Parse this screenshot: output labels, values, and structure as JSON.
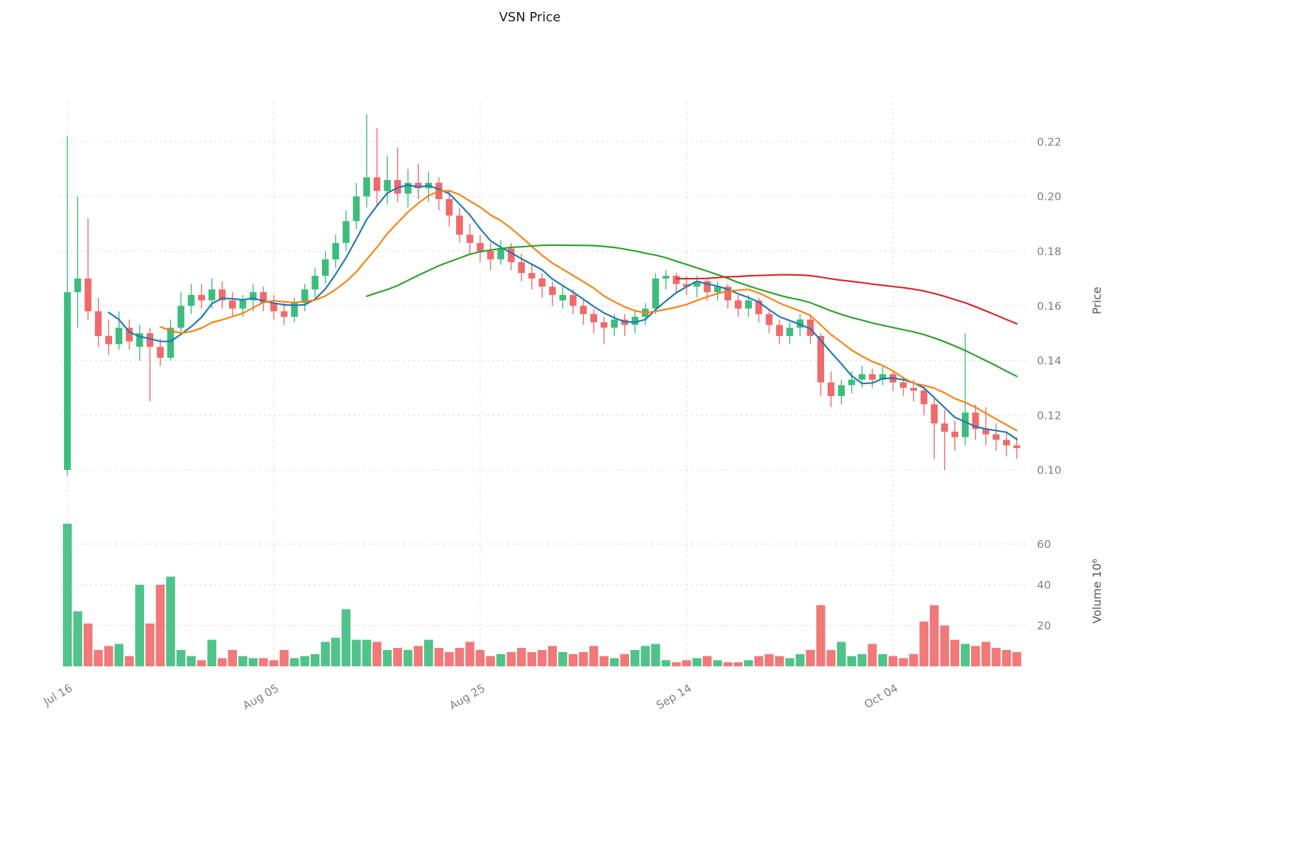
{
  "title": "VSN Price",
  "chart_data": {
    "type": "candlestick",
    "title": "VSN Price",
    "grid": true,
    "price_axis": {
      "label": "Price",
      "ticks": [
        "0.10",
        "0.12",
        "0.14",
        "0.16",
        "0.18",
        "0.20",
        "0.22"
      ],
      "ylim": [
        0.09,
        0.235
      ]
    },
    "volume_axis": {
      "label": "Volume  10⁶",
      "ticks": [
        "20",
        "40",
        "60"
      ]
    },
    "x_ticks": [
      {
        "i": 0,
        "label": "Jul 16"
      },
      {
        "i": 20,
        "label": "Aug 05"
      },
      {
        "i": 40,
        "label": "Aug 25"
      },
      {
        "i": 60,
        "label": "Sep 14"
      },
      {
        "i": 80,
        "label": "Oct 04"
      }
    ],
    "colors": {
      "up": "#3dbd7d",
      "down": "#ef6a6a",
      "grid": "#d9d9d9",
      "tick_text": "#808080",
      "axis_text": "#555555",
      "title_text": "#1a1a1a"
    },
    "moving_averages": [
      {
        "name": "sma-5",
        "window": 5,
        "color": "#1f77b4"
      },
      {
        "name": "sma-10",
        "window": 10,
        "color": "#ff7f0e"
      },
      {
        "name": "sma-30",
        "window": 30,
        "color": "#2ca02c"
      },
      {
        "name": "sma-60",
        "window": 60,
        "color": "#d62728"
      }
    ],
    "candles": [
      [
        0.1,
        0.222,
        0.098,
        0.165
      ],
      [
        0.165,
        0.2,
        0.152,
        0.17
      ],
      [
        0.17,
        0.192,
        0.155,
        0.158
      ],
      [
        0.158,
        0.163,
        0.145,
        0.149
      ],
      [
        0.149,
        0.155,
        0.142,
        0.146
      ],
      [
        0.146,
        0.158,
        0.144,
        0.152
      ],
      [
        0.152,
        0.155,
        0.144,
        0.147
      ],
      [
        0.145,
        0.153,
        0.14,
        0.15
      ],
      [
        0.15,
        0.152,
        0.125,
        0.145
      ],
      [
        0.145,
        0.148,
        0.138,
        0.141
      ],
      [
        0.141,
        0.155,
        0.14,
        0.152
      ],
      [
        0.152,
        0.165,
        0.15,
        0.16
      ],
      [
        0.16,
        0.168,
        0.157,
        0.164
      ],
      [
        0.164,
        0.168,
        0.159,
        0.162
      ],
      [
        0.162,
        0.17,
        0.159,
        0.166
      ],
      [
        0.166,
        0.169,
        0.159,
        0.162
      ],
      [
        0.162,
        0.165,
        0.156,
        0.159
      ],
      [
        0.159,
        0.164,
        0.156,
        0.162
      ],
      [
        0.162,
        0.168,
        0.158,
        0.165
      ],
      [
        0.165,
        0.167,
        0.158,
        0.161
      ],
      [
        0.161,
        0.164,
        0.155,
        0.158
      ],
      [
        0.158,
        0.161,
        0.153,
        0.156
      ],
      [
        0.156,
        0.163,
        0.154,
        0.161
      ],
      [
        0.161,
        0.168,
        0.158,
        0.166
      ],
      [
        0.166,
        0.174,
        0.163,
        0.171
      ],
      [
        0.171,
        0.18,
        0.168,
        0.177
      ],
      [
        0.177,
        0.186,
        0.174,
        0.183
      ],
      [
        0.183,
        0.195,
        0.18,
        0.191
      ],
      [
        0.191,
        0.205,
        0.188,
        0.2
      ],
      [
        0.2,
        0.23,
        0.196,
        0.207
      ],
      [
        0.207,
        0.225,
        0.197,
        0.202
      ],
      [
        0.202,
        0.215,
        0.197,
        0.206
      ],
      [
        0.206,
        0.218,
        0.198,
        0.201
      ],
      [
        0.201,
        0.21,
        0.196,
        0.205
      ],
      [
        0.205,
        0.212,
        0.199,
        0.203
      ],
      [
        0.203,
        0.209,
        0.198,
        0.205
      ],
      [
        0.205,
        0.207,
        0.195,
        0.199
      ],
      [
        0.199,
        0.202,
        0.189,
        0.193
      ],
      [
        0.193,
        0.196,
        0.183,
        0.186
      ],
      [
        0.186,
        0.19,
        0.179,
        0.183
      ],
      [
        0.183,
        0.186,
        0.176,
        0.18
      ],
      [
        0.18,
        0.183,
        0.173,
        0.177
      ],
      [
        0.177,
        0.184,
        0.175,
        0.181
      ],
      [
        0.181,
        0.183,
        0.173,
        0.176
      ],
      [
        0.176,
        0.179,
        0.169,
        0.172
      ],
      [
        0.172,
        0.175,
        0.166,
        0.17
      ],
      [
        0.17,
        0.172,
        0.163,
        0.167
      ],
      [
        0.167,
        0.169,
        0.16,
        0.164
      ],
      [
        0.162,
        0.167,
        0.159,
        0.164
      ],
      [
        0.164,
        0.166,
        0.157,
        0.16
      ],
      [
        0.16,
        0.162,
        0.153,
        0.157
      ],
      [
        0.157,
        0.159,
        0.15,
        0.154
      ],
      [
        0.154,
        0.156,
        0.146,
        0.152
      ],
      [
        0.152,
        0.157,
        0.149,
        0.155
      ],
      [
        0.155,
        0.157,
        0.149,
        0.153
      ],
      [
        0.153,
        0.158,
        0.15,
        0.156
      ],
      [
        0.156,
        0.161,
        0.153,
        0.159
      ],
      [
        0.159,
        0.172,
        0.157,
        0.17
      ],
      [
        0.17,
        0.173,
        0.166,
        0.171
      ],
      [
        0.171,
        0.172,
        0.165,
        0.168
      ],
      [
        0.168,
        0.171,
        0.164,
        0.167
      ],
      [
        0.167,
        0.171,
        0.163,
        0.169
      ],
      [
        0.169,
        0.17,
        0.162,
        0.165
      ],
      [
        0.165,
        0.169,
        0.162,
        0.167
      ],
      [
        0.167,
        0.168,
        0.159,
        0.162
      ],
      [
        0.162,
        0.164,
        0.156,
        0.159
      ],
      [
        0.159,
        0.164,
        0.156,
        0.162
      ],
      [
        0.162,
        0.163,
        0.154,
        0.157
      ],
      [
        0.157,
        0.159,
        0.15,
        0.153
      ],
      [
        0.153,
        0.155,
        0.146,
        0.149
      ],
      [
        0.149,
        0.154,
        0.146,
        0.152
      ],
      [
        0.152,
        0.157,
        0.149,
        0.155
      ],
      [
        0.155,
        0.156,
        0.146,
        0.149
      ],
      [
        0.149,
        0.15,
        0.127,
        0.132
      ],
      [
        0.132,
        0.136,
        0.123,
        0.127
      ],
      [
        0.127,
        0.133,
        0.124,
        0.131
      ],
      [
        0.131,
        0.136,
        0.128,
        0.133
      ],
      [
        0.133,
        0.138,
        0.13,
        0.135
      ],
      [
        0.135,
        0.137,
        0.13,
        0.133
      ],
      [
        0.133,
        0.138,
        0.131,
        0.135
      ],
      [
        0.135,
        0.136,
        0.129,
        0.132
      ],
      [
        0.132,
        0.134,
        0.127,
        0.13
      ],
      [
        0.13,
        0.133,
        0.125,
        0.129
      ],
      [
        0.129,
        0.131,
        0.12,
        0.124
      ],
      [
        0.124,
        0.126,
        0.104,
        0.117
      ],
      [
        0.117,
        0.122,
        0.1,
        0.114
      ],
      [
        0.114,
        0.118,
        0.107,
        0.112
      ],
      [
        0.112,
        0.15,
        0.109,
        0.121
      ],
      [
        0.121,
        0.124,
        0.111,
        0.115
      ],
      [
        0.115,
        0.123,
        0.109,
        0.113
      ],
      [
        0.113,
        0.117,
        0.107,
        0.111
      ],
      [
        0.111,
        0.114,
        0.105,
        0.109
      ],
      [
        0.109,
        0.112,
        0.104,
        0.108
      ]
    ],
    "volumes": [
      70,
      27,
      21,
      8,
      10,
      11,
      5,
      40,
      21,
      40,
      44,
      8,
      5,
      3,
      13,
      4,
      8,
      5,
      4,
      4,
      3,
      8,
      4,
      5,
      6,
      12,
      14,
      28,
      13,
      13,
      12,
      8,
      9,
      8,
      10,
      13,
      9,
      7,
      9,
      12,
      8,
      5,
      6,
      7,
      9,
      7,
      8,
      10,
      7,
      6,
      7,
      10,
      5,
      4,
      6,
      8,
      10,
      11,
      3,
      2,
      3,
      4,
      5,
      3,
      2,
      2,
      3,
      5,
      6,
      5,
      4,
      6,
      8,
      30,
      8,
      12,
      5,
      6,
      11,
      6,
      5,
      4,
      6,
      22,
      30,
      20,
      13,
      11,
      10,
      12,
      9,
      8,
      7
    ]
  }
}
